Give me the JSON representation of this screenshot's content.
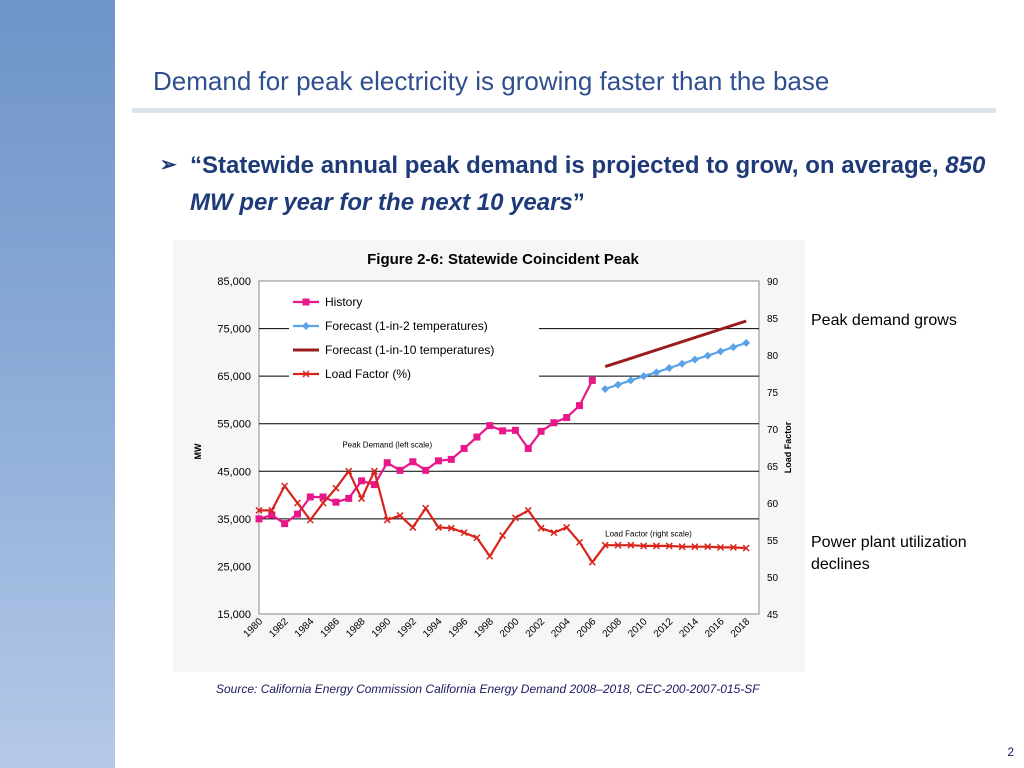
{
  "slide": {
    "title": "Demand for peak electricity is growing faster than the base",
    "bullet": {
      "marker": "➢",
      "quote_open": "“",
      "text_plain": "Statewide annual peak demand is projected to grow, on average, ",
      "text_italic": "850 MW per year for the next 10 years",
      "quote_close": "”"
    },
    "notes": [
      "Peak demand grows",
      "Power plant utilization declines"
    ],
    "source": "Source: California Energy Commission California Energy Demand 2008–2018, CEC-200-2007-015-SF",
    "page_number": "2"
  },
  "chart_data": {
    "type": "line",
    "title": "Figure 2-6: Statewide Coincident Peak",
    "ylabel": "MW",
    "y2label": "Load Factor",
    "ylim": [
      15000,
      85000
    ],
    "y2lim": [
      45,
      90
    ],
    "yticks": [
      "85,000",
      "75,000",
      "65,000",
      "55,000",
      "45,000",
      "35,000",
      "25,000",
      "15,000"
    ],
    "y2ticks": [
      "90",
      "85",
      "80",
      "75",
      "70",
      "65",
      "60",
      "55",
      "50",
      "45"
    ],
    "xticks": [
      "1980",
      "1982",
      "1984",
      "1986",
      "1988",
      "1990",
      "1992",
      "1994",
      "1996",
      "1998",
      "2000",
      "2002",
      "2004",
      "2006",
      "2008",
      "2010",
      "2012",
      "2014",
      "2016",
      "2018"
    ],
    "gridlines_y": [
      75000,
      65000,
      55000,
      45000,
      35000
    ],
    "legend_position": "top-left",
    "annotations": [
      {
        "text": "Peak Demand (left scale)",
        "x": 1986.5,
        "y": 50000,
        "axis": "left"
      },
      {
        "text": "Load Factor (right scale)",
        "x": 2007,
        "y": 55.5,
        "axis": "right"
      }
    ],
    "series": [
      {
        "name": "History",
        "axis": "left",
        "color": "#e8178a",
        "marker": "square",
        "x": [
          1980,
          1981,
          1982,
          1983,
          1984,
          1985,
          1986,
          1987,
          1988,
          1989,
          1990,
          1991,
          1992,
          1993,
          1994,
          1995,
          1996,
          1997,
          1998,
          1999,
          2000,
          2001,
          2002,
          2003,
          2004,
          2005,
          2006
        ],
        "values": [
          35000,
          35800,
          34000,
          36000,
          39600,
          39600,
          38500,
          39300,
          43000,
          42200,
          46800,
          45200,
          47000,
          45200,
          47200,
          47500,
          49800,
          52200,
          54600,
          53500,
          53600,
          49800,
          53400,
          55200,
          56300,
          58800,
          64100
        ]
      },
      {
        "name": "Forecast (1-in-2 temperatures)",
        "axis": "left",
        "color": "#5ba3e6",
        "marker": "diamond",
        "x": [
          2007,
          2008,
          2009,
          2010,
          2011,
          2012,
          2013,
          2014,
          2015,
          2016,
          2017,
          2018
        ],
        "values": [
          62300,
          63200,
          64100,
          65000,
          65800,
          66700,
          67600,
          68500,
          69300,
          70200,
          71100,
          72000
        ]
      },
      {
        "name": "Forecast (1-in-10 temperatures)",
        "axis": "left",
        "color": "#9b1c1c",
        "marker": "none",
        "x": [
          2007,
          2018
        ],
        "values": [
          67000,
          76600
        ]
      },
      {
        "name": "Load Factor (%)",
        "axis": "right",
        "color": "#d8241c",
        "marker": "x",
        "x": [
          1980,
          1981,
          1982,
          1983,
          1984,
          1985,
          1986,
          1987,
          1988,
          1989,
          1990,
          1991,
          1992,
          1993,
          1994,
          1995,
          1996,
          1997,
          1998,
          1999,
          2000,
          2001,
          2002,
          2003,
          2004,
          2005,
          2006,
          2007,
          2008,
          2009,
          2010,
          2011,
          2012,
          2013,
          2014,
          2015,
          2016,
          2017,
          2018
        ],
        "values": [
          59,
          59,
          62.3,
          60,
          57.7,
          60,
          62,
          64.3,
          60.6,
          64.3,
          57.7,
          58.3,
          56.7,
          59.3,
          56.7,
          56.6,
          56,
          55.3,
          52.8,
          55.6,
          58,
          59,
          56.6,
          56,
          56.7,
          54.7,
          52,
          54.3,
          54.3,
          54.3,
          54.2,
          54.2,
          54.2,
          54.1,
          54.1,
          54.1,
          54,
          54,
          53.9
        ]
      }
    ]
  }
}
